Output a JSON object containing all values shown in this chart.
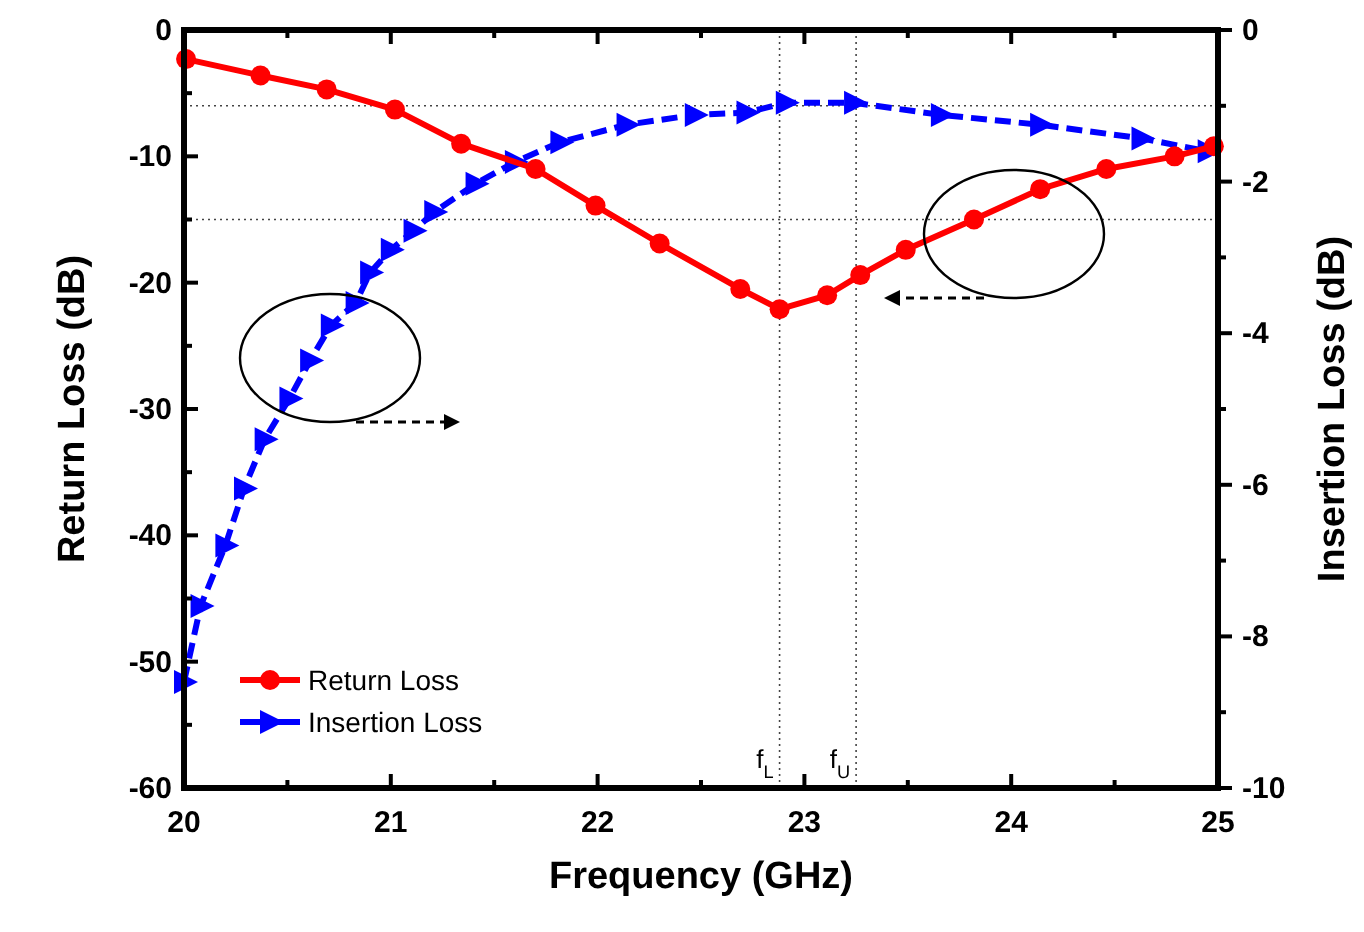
{
  "chart_data": {
    "type": "line",
    "xlabel": "Frequency (GHz)",
    "ylabel": "Return Loss (dB)",
    "y2label": "Insertion Loss (dB)",
    "xlim": [
      20,
      25
    ],
    "xticks": [
      20,
      21,
      22,
      23,
      24,
      25
    ],
    "ylim": [
      -60,
      0
    ],
    "yticks": [
      -60,
      -50,
      -40,
      -30,
      -20,
      -10,
      0
    ],
    "y2lim": [
      -10,
      0
    ],
    "y2ticks": [
      -10,
      -8,
      -6,
      -4,
      -2,
      0
    ],
    "legend": "bottom left",
    "grid": false,
    "series": [
      {
        "name": "Return Loss",
        "color": "#ff0000",
        "marker": "circle",
        "line_style": "solid",
        "x": [
          20.01,
          20.37,
          20.69,
          21.02,
          21.34,
          21.7,
          21.99,
          22.3,
          22.69,
          22.88,
          23.11,
          23.27,
          23.49,
          23.82,
          24.14,
          24.46,
          24.79,
          24.98
        ],
        "values": [
          -2.3,
          -3.6,
          -4.7,
          -6.3,
          -9,
          -11,
          -13.9,
          -16.9,
          -20.5,
          -22.1,
          -21,
          -19.4,
          -17.4,
          -15,
          -12.6,
          -11,
          -10,
          -9.2
        ]
      },
      {
        "name": "Insertion Loss",
        "color": "#0000ff",
        "marker": "triangle",
        "line_style": "dashed",
        "axis": "y2",
        "x": [
          20,
          20.08,
          20.2,
          20.29,
          20.39,
          20.51,
          20.61,
          20.71,
          20.83,
          20.9,
          21,
          21.11,
          21.21,
          21.41,
          21.6,
          21.82,
          22.14,
          22.47,
          22.72,
          22.91,
          23.24,
          23.66,
          24.14,
          24.63,
          24.95
        ],
        "values": [
          -8.6,
          -7.6,
          -6.8,
          -6.05,
          -5.4,
          -4.86,
          -4.36,
          -3.9,
          -3.6,
          -3.2,
          -2.9,
          -2.65,
          -2.4,
          -2.03,
          -1.74,
          -1.48,
          -1.25,
          -1.12,
          -1.09,
          -0.96,
          -0.96,
          -1.12,
          -1.25,
          -1.43,
          -1.6
        ]
      }
    ],
    "ref_lines": [
      {
        "axis": "y",
        "value": -6,
        "line_style": "dotted"
      },
      {
        "axis": "y",
        "value": -15,
        "line_style": "dotted"
      },
      {
        "axis": "x",
        "value": 22.88,
        "label": "f$_{L}$",
        "line_style": "dotted"
      },
      {
        "axis": "x",
        "value": 23.25,
        "label": "f$_{U}$",
        "line_style": "dotted"
      }
    ]
  }
}
